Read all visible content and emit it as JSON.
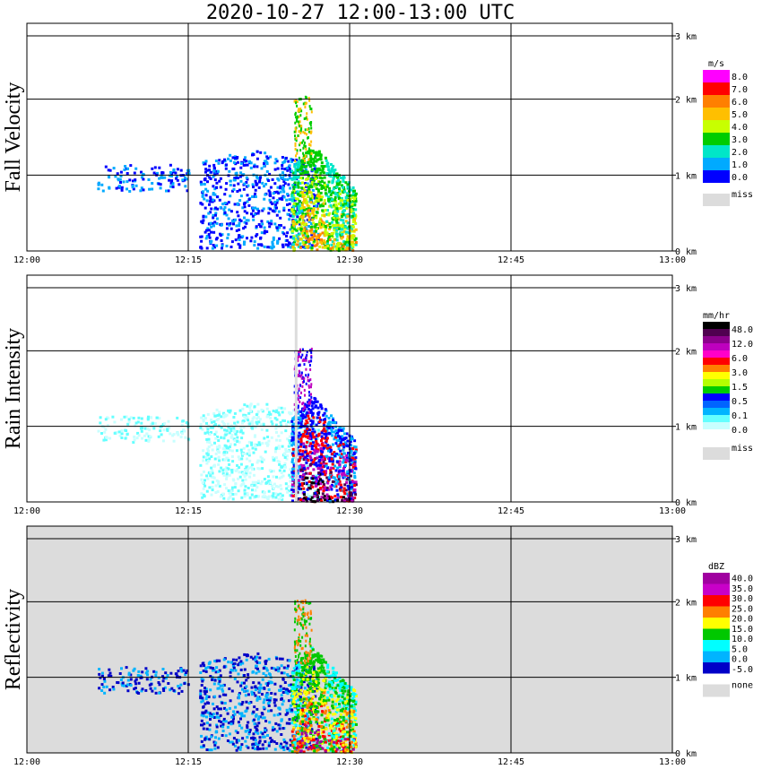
{
  "chart_data": {
    "title": "2020-10-27   12:00-13:00 UTC",
    "x_ticks": [
      "12:00",
      "12:15",
      "12:30",
      "12:45",
      "13:00"
    ],
    "xlim_minutes": [
      0,
      60
    ],
    "y_ticks": [
      "0 km",
      "1 km",
      "2 km",
      "3 km"
    ],
    "ylim_km": [
      0,
      3.0
    ],
    "panels": [
      {
        "type": "heatmap",
        "name": "fall-velocity",
        "ylabel": "Fall Velocity",
        "background": "#ffffff",
        "colorbar": {
          "unit": "m/s",
          "labels": [
            "8.0",
            "7.0",
            "6.0",
            "5.0",
            "4.0",
            "3.0",
            "2.0",
            "1.0",
            "0.0"
          ],
          "colors": [
            "#ff00ff",
            "#ff0000",
            "#ff7f00",
            "#ffbf00",
            "#c8ff00",
            "#00cc00",
            "#00e6c8",
            "#00aaff",
            "#0000ff"
          ],
          "missing_label": "miss",
          "missing_color": "#dcdcdc"
        }
      },
      {
        "type": "heatmap",
        "name": "rain-intensity",
        "ylabel": "Rain Intensity",
        "background": "#ffffff",
        "colorbar": {
          "unit": "mm/hr",
          "labels": [
            "48.0",
            "12.0",
            "6.0",
            "3.0",
            "1.5",
            "0.5",
            "0.1",
            "0.0"
          ],
          "colors": [
            "#000000",
            "#500050",
            "#8c008c",
            "#be00be",
            "#ff00c8",
            "#ff0000",
            "#ff7f00",
            "#ffff00",
            "#b4ff00",
            "#00cc00",
            "#0000ff",
            "#0064ff",
            "#00b4ff",
            "#64ffff",
            "#c8ffff",
            "#ffffff"
          ],
          "missing_label": "miss",
          "missing_color": "#dcdcdc"
        }
      },
      {
        "type": "heatmap",
        "name": "reflectivity",
        "ylabel": "Reflectivity",
        "background": "#dcdcdc",
        "colorbar": {
          "unit": "dBZ",
          "labels": [
            "40.0",
            "35.0",
            "30.0",
            "25.0",
            "20.0",
            "15.0",
            "10.0",
            "5.0",
            "0.0",
            "-5.0"
          ],
          "colors": [
            "#a000a0",
            "#c800c8",
            "#ff0000",
            "#ff7f00",
            "#ffff00",
            "#00c800",
            "#00ffff",
            "#00b4ff",
            "#0000c8"
          ],
          "missing_label": "none",
          "missing_color": "#dcdcdc"
        }
      }
    ]
  }
}
